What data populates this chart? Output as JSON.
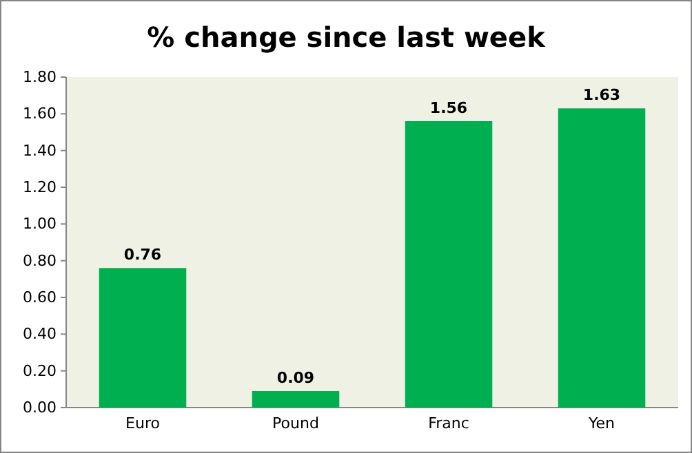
{
  "chart_data": {
    "type": "bar",
    "title": "% change since last week",
    "categories": [
      "Euro",
      "Pound",
      "Franc",
      "Yen"
    ],
    "values": [
      0.76,
      0.09,
      1.56,
      1.63
    ],
    "color": "#00b050",
    "ylim": [
      0,
      1.8
    ],
    "yticks": [
      {
        "value": 0,
        "label": "0.00"
      },
      {
        "value": 0.2,
        "label": "0.20"
      },
      {
        "value": 0.4,
        "label": "0.40"
      },
      {
        "value": 0.6,
        "label": "0.60"
      },
      {
        "value": 0.8,
        "label": "0.80"
      },
      {
        "value": 1,
        "label": "1.00"
      },
      {
        "value": 1.2,
        "label": "1.20"
      },
      {
        "value": 1.4,
        "label": "1.40"
      },
      {
        "value": 1.6,
        "label": "1.60"
      },
      {
        "value": 1.8,
        "label": "1.80"
      }
    ],
    "data_labels": true
  }
}
